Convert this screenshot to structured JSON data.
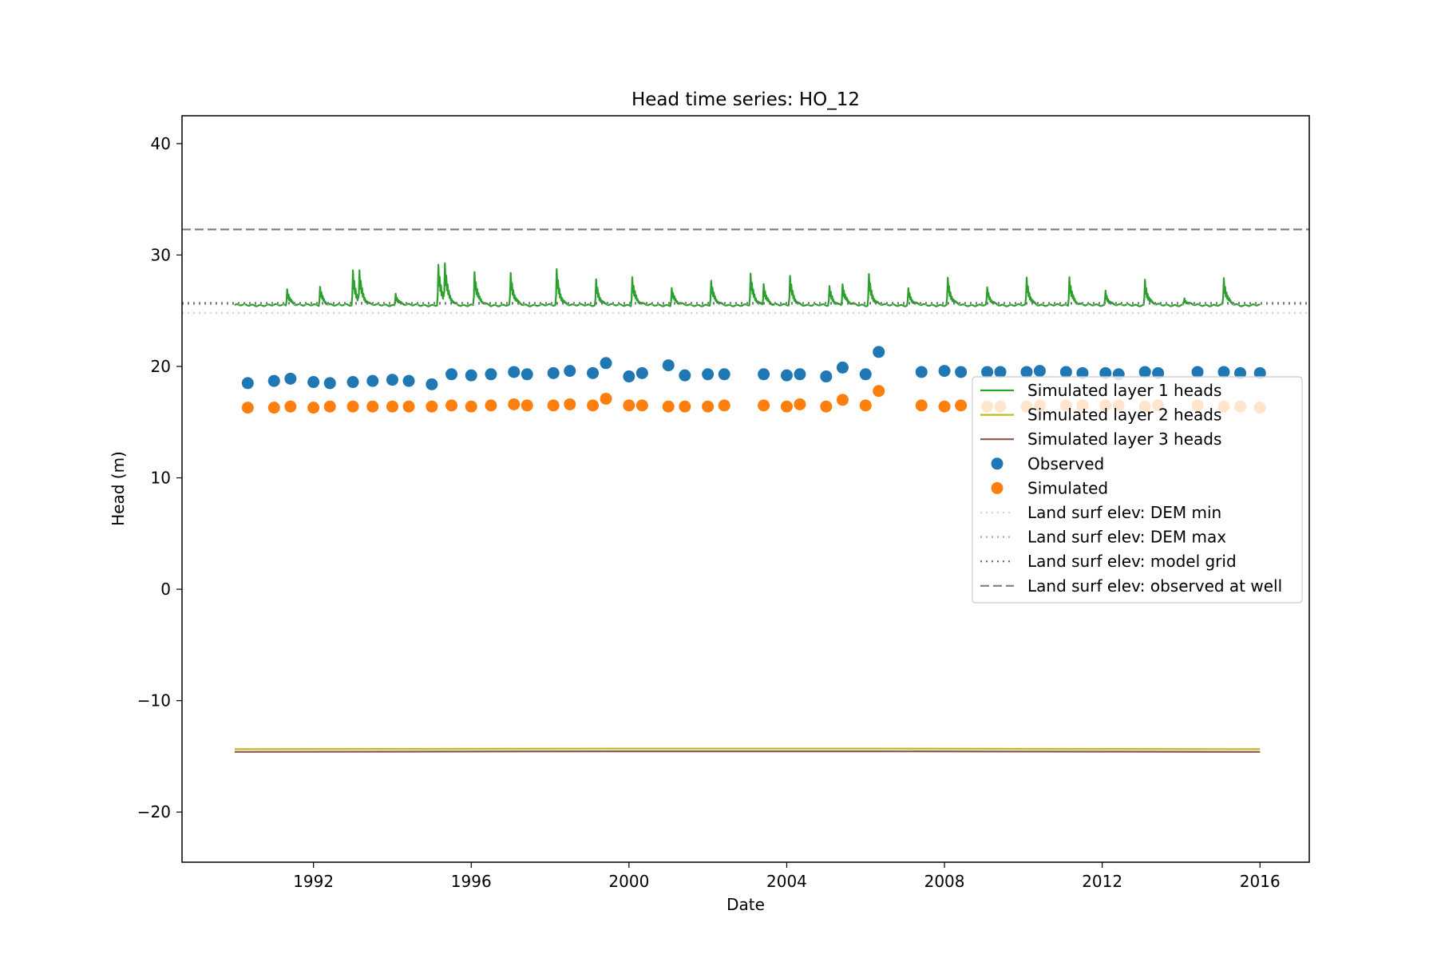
{
  "chart_data": {
    "type": "line",
    "title": "Head time series: HO_12",
    "xlabel": "Date",
    "ylabel": "Head (m)",
    "xlim": [
      "1988-09-01",
      "2017-04-01"
    ],
    "ylim": [
      -24.5,
      42.5
    ],
    "x_ticks": [
      "1992",
      "1996",
      "2000",
      "2004",
      "2008",
      "2012",
      "2016"
    ],
    "y_ticks": [
      "40",
      "30",
      "20",
      "10",
      "0",
      "−10",
      "−20"
    ],
    "grid": false,
    "legend_position": "center-right",
    "series": [
      {
        "name": "Simulated layer 1 heads",
        "kind": "line",
        "color": "#2ca02c",
        "baseline": 25.5,
        "range": [
          "1990-01-01",
          "2016-01-01"
        ],
        "peaks": [
          {
            "date": "1991-05-01",
            "value": 27.0
          },
          {
            "date": "1992-03-01",
            "value": 27.2
          },
          {
            "date": "1993-01-01",
            "value": 28.6
          },
          {
            "date": "1993-03-01",
            "value": 28.2
          },
          {
            "date": "1994-02-01",
            "value": 26.6
          },
          {
            "date": "1995-03-01",
            "value": 29.1
          },
          {
            "date": "1995-05-01",
            "value": 28.7
          },
          {
            "date": "1996-02-01",
            "value": 28.5
          },
          {
            "date": "1997-01-01",
            "value": 28.3
          },
          {
            "date": "1998-03-01",
            "value": 28.7
          },
          {
            "date": "1999-03-01",
            "value": 27.8
          },
          {
            "date": "2000-02-01",
            "value": 28.1
          },
          {
            "date": "2001-02-01",
            "value": 27.1
          },
          {
            "date": "2002-02-01",
            "value": 27.7
          },
          {
            "date": "2003-02-01",
            "value": 28.3
          },
          {
            "date": "2003-06-01",
            "value": 27.4
          },
          {
            "date": "2004-02-01",
            "value": 28.1
          },
          {
            "date": "2005-02-01",
            "value": 27.2
          },
          {
            "date": "2005-06-01",
            "value": 27.4
          },
          {
            "date": "2006-02-01",
            "value": 28.3
          },
          {
            "date": "2007-02-01",
            "value": 27.0
          },
          {
            "date": "2008-02-01",
            "value": 27.9
          },
          {
            "date": "2009-02-01",
            "value": 27.0
          },
          {
            "date": "2010-02-01",
            "value": 27.9
          },
          {
            "date": "2011-03-01",
            "value": 28.1
          },
          {
            "date": "2012-02-01",
            "value": 26.8
          },
          {
            "date": "2013-02-01",
            "value": 27.8
          },
          {
            "date": "2014-02-01",
            "value": 26.1
          },
          {
            "date": "2015-02-01",
            "value": 27.9
          }
        ]
      },
      {
        "name": "Simulated layer 2 heads",
        "kind": "line",
        "color": "#bcbd22",
        "range": [
          "1990-01-01",
          "2016-01-01"
        ],
        "x": [
          "1990-01-01",
          "1999-06-01",
          "2006-05-01",
          "2016-01-01"
        ],
        "y": [
          -14.35,
          -14.3,
          -14.3,
          -14.35
        ]
      },
      {
        "name": "Simulated layer 3 heads",
        "kind": "line",
        "color": "#8c564b",
        "range": [
          "1990-01-01",
          "2016-01-01"
        ],
        "x": [
          "1990-01-01",
          "1999-06-01",
          "2006-05-01",
          "2016-01-01"
        ],
        "y": [
          -14.6,
          -14.55,
          -14.55,
          -14.6
        ]
      },
      {
        "name": "Observed",
        "kind": "scatter",
        "color": "#1f77b4",
        "x": [
          "1990-05-01",
          "1991-01-01",
          "1991-06-01",
          "1992-01-01",
          "1992-06-01",
          "1993-01-01",
          "1993-07-01",
          "1994-01-01",
          "1994-06-01",
          "1995-01-01",
          "1995-07-01",
          "1996-01-01",
          "1996-07-01",
          "1997-02-01",
          "1997-06-01",
          "1998-02-01",
          "1998-07-01",
          "1999-02-01",
          "1999-06-01",
          "2000-01-01",
          "2000-05-01",
          "2001-01-01",
          "2001-06-01",
          "2002-01-01",
          "2002-06-01",
          "2003-06-01",
          "2004-01-01",
          "2004-05-01",
          "2005-01-01",
          "2005-06-01",
          "2006-01-01",
          "2006-05-01",
          "2007-06-01",
          "2008-01-01",
          "2008-06-01",
          "2009-02-01",
          "2009-06-01",
          "2010-02-01",
          "2010-06-01",
          "2011-02-01",
          "2011-07-01",
          "2012-02-01",
          "2012-06-01",
          "2013-02-01",
          "2013-06-01",
          "2014-06-01",
          "2015-02-01",
          "2015-07-01",
          "2016-01-01"
        ],
        "y": [
          18.5,
          18.7,
          18.9,
          18.6,
          18.5,
          18.6,
          18.7,
          18.8,
          18.7,
          18.4,
          19.3,
          19.2,
          19.3,
          19.5,
          19.3,
          19.4,
          19.6,
          19.4,
          20.3,
          19.1,
          19.4,
          20.1,
          19.2,
          19.3,
          19.3,
          19.3,
          19.2,
          19.3,
          19.1,
          19.9,
          19.3,
          21.3,
          19.5,
          19.6,
          19.5,
          19.5,
          19.5,
          19.5,
          19.6,
          19.5,
          19.4,
          19.4,
          19.3,
          19.5,
          19.4,
          19.5,
          19.5,
          19.4,
          19.4
        ]
      },
      {
        "name": "Simulated",
        "kind": "scatter",
        "color": "#ff7f0e",
        "x": [
          "1990-05-01",
          "1991-01-01",
          "1991-06-01",
          "1992-01-01",
          "1992-06-01",
          "1993-01-01",
          "1993-07-01",
          "1994-01-01",
          "1994-06-01",
          "1995-01-01",
          "1995-07-01",
          "1996-01-01",
          "1996-07-01",
          "1997-02-01",
          "1997-06-01",
          "1998-02-01",
          "1998-07-01",
          "1999-02-01",
          "1999-06-01",
          "2000-01-01",
          "2000-05-01",
          "2001-01-01",
          "2001-06-01",
          "2002-01-01",
          "2002-06-01",
          "2003-06-01",
          "2004-01-01",
          "2004-05-01",
          "2005-01-01",
          "2005-06-01",
          "2006-01-01",
          "2006-05-01",
          "2007-06-01",
          "2008-01-01",
          "2008-06-01",
          "2009-02-01",
          "2009-06-01",
          "2010-02-01",
          "2010-06-01",
          "2011-02-01",
          "2011-07-01",
          "2012-02-01",
          "2012-06-01",
          "2013-02-01",
          "2013-06-01",
          "2014-06-01",
          "2015-02-01",
          "2015-07-01",
          "2016-01-01"
        ],
        "y": [
          16.3,
          16.3,
          16.4,
          16.3,
          16.4,
          16.4,
          16.4,
          16.4,
          16.4,
          16.4,
          16.5,
          16.4,
          16.5,
          16.6,
          16.5,
          16.5,
          16.6,
          16.5,
          17.1,
          16.5,
          16.5,
          16.4,
          16.4,
          16.4,
          16.5,
          16.5,
          16.4,
          16.6,
          16.4,
          17.0,
          16.5,
          17.8,
          16.5,
          16.4,
          16.5,
          16.4,
          16.4,
          16.4,
          16.5,
          16.5,
          16.5,
          16.5,
          16.5,
          16.4,
          16.5,
          16.5,
          16.4,
          16.4,
          16.3
        ]
      },
      {
        "name": "Land surf elev: DEM min",
        "kind": "hline",
        "color": "#d3d3d3",
        "style": "dotted",
        "y": 24.8
      },
      {
        "name": "Land surf elev: DEM max",
        "kind": "hline",
        "color": "#a9a9a9",
        "style": "dotted",
        "y": 25.6
      },
      {
        "name": "Land surf elev: model grid",
        "kind": "hline",
        "color": "#696969",
        "style": "dotted",
        "y": 25.7
      },
      {
        "name": "Land surf elev: observed at well",
        "kind": "hline",
        "color": "#808080",
        "style": "dashed",
        "y": 32.3
      }
    ]
  }
}
